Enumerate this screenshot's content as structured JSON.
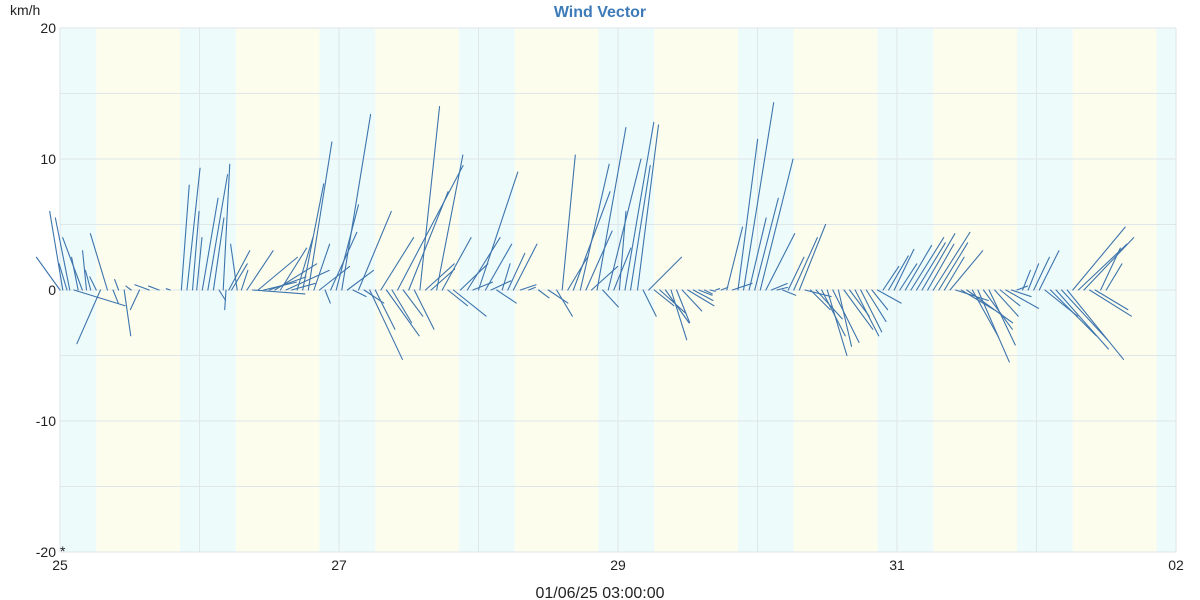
{
  "chart_data": {
    "type": "wind-vector",
    "title": "Wind Vector",
    "y_unit": "km/h",
    "ylim": [
      -20,
      20
    ],
    "y_ticks": [
      20,
      10,
      0,
      -10,
      -20
    ],
    "x_ticks": [
      {
        "label": "25",
        "day": 25
      },
      {
        "label": "27",
        "day": 27
      },
      {
        "label": "29",
        "day": 29
      },
      {
        "label": "31",
        "day": 31
      },
      {
        "label": "02",
        "day": 33
      }
    ],
    "xlim_days": [
      25,
      33
    ],
    "cursor_time": "01/06/25 03:00:00",
    "cursor_marker": "*",
    "grid": true,
    "background_bands": [
      {
        "kind": "night",
        "start": 25.0,
        "end": 25.26
      },
      {
        "kind": "day",
        "start": 25.26,
        "end": 25.86
      },
      {
        "kind": "night",
        "start": 25.86,
        "end": 26.26
      },
      {
        "kind": "day",
        "start": 26.26,
        "end": 26.86
      },
      {
        "kind": "night",
        "start": 26.86,
        "end": 27.26
      },
      {
        "kind": "day",
        "start": 27.26,
        "end": 27.86
      },
      {
        "kind": "night",
        "start": 27.86,
        "end": 28.26
      },
      {
        "kind": "day",
        "start": 28.26,
        "end": 28.86
      },
      {
        "kind": "night",
        "start": 28.86,
        "end": 29.26
      },
      {
        "kind": "day",
        "start": 29.26,
        "end": 29.86
      },
      {
        "kind": "night",
        "start": 29.86,
        "end": 30.26
      },
      {
        "kind": "day",
        "start": 30.26,
        "end": 30.86
      },
      {
        "kind": "night",
        "start": 30.86,
        "end": 31.26
      },
      {
        "kind": "day",
        "start": 31.26,
        "end": 31.86
      },
      {
        "kind": "night",
        "start": 31.86,
        "end": 32.26
      },
      {
        "kind": "day",
        "start": 32.26,
        "end": 32.86
      },
      {
        "kind": "night",
        "start": 32.86,
        "end": 33.0
      }
    ],
    "vectors": [
      {
        "t": 25.0,
        "u": -1.8,
        "v": 2.5
      },
      {
        "t": 25.02,
        "u": -1.0,
        "v": 6.0
      },
      {
        "t": 25.05,
        "u": -0.6,
        "v": 2.0
      },
      {
        "t": 25.07,
        "u": -1.1,
        "v": 5.5
      },
      {
        "t": 25.1,
        "u": 3.9,
        "v": -1.2
      },
      {
        "t": 25.13,
        "u": -0.5,
        "v": 2.5
      },
      {
        "t": 25.16,
        "u": -1.5,
        "v": 4.0
      },
      {
        "t": 25.19,
        "u": -0.3,
        "v": 3.0
      },
      {
        "t": 25.22,
        "u": -0.4,
        "v": 1.5
      },
      {
        "t": 25.26,
        "u": -0.5,
        "v": 1.0
      },
      {
        "t": 25.29,
        "u": -1.8,
        "v": -4.1
      },
      {
        "t": 25.34,
        "u": -1.3,
        "v": 4.3
      },
      {
        "t": 25.38,
        "u": 0.4,
        "v": -1.0
      },
      {
        "t": 25.42,
        "u": -0.3,
        "v": 0.8
      },
      {
        "t": 25.46,
        "u": 0.5,
        "v": -3.5
      },
      {
        "t": 25.51,
        "u": -0.4,
        "v": 0.3
      },
      {
        "t": 25.57,
        "u": -0.7,
        "v": -1.5
      },
      {
        "t": 25.64,
        "u": -1.1,
        "v": 0.4
      },
      {
        "t": 25.71,
        "u": -0.8,
        "v": 0.3
      },
      {
        "t": 25.79,
        "u": -0.3,
        "v": 0.1
      },
      {
        "t": 25.87,
        "u": 0.6,
        "v": 8.0
      },
      {
        "t": 25.91,
        "u": 1.0,
        "v": 9.3
      },
      {
        "t": 25.95,
        "u": 0.5,
        "v": 6.0
      },
      {
        "t": 25.98,
        "u": 0.4,
        "v": 4.0
      },
      {
        "t": 26.02,
        "u": 1.2,
        "v": 7.0
      },
      {
        "t": 26.06,
        "u": 1.5,
        "v": 8.8
      },
      {
        "t": 26.1,
        "u": 0.8,
        "v": 5.5
      },
      {
        "t": 26.14,
        "u": 0.5,
        "v": -0.8
      },
      {
        "t": 26.17,
        "u": 0.5,
        "v": 9.6
      },
      {
        "t": 26.19,
        "u": -0.1,
        "v": -1.5
      },
      {
        "t": 26.21,
        "u": 1.6,
        "v": 3.0
      },
      {
        "t": 26.23,
        "u": 1.2,
        "v": 2.0
      },
      {
        "t": 26.27,
        "u": -0.5,
        "v": 3.5
      },
      {
        "t": 26.3,
        "u": 0.5,
        "v": 1.5
      },
      {
        "t": 26.34,
        "u": 2.0,
        "v": 3.0
      },
      {
        "t": 26.38,
        "u": 4.0,
        "v": -0.3
      },
      {
        "t": 26.42,
        "u": 3.0,
        "v": 2.5
      },
      {
        "t": 26.46,
        "u": 2.5,
        "v": 0.6
      },
      {
        "t": 26.5,
        "u": 2.8,
        "v": 1.0
      },
      {
        "t": 26.54,
        "u": 3.2,
        "v": 2.0
      },
      {
        "t": 26.58,
        "u": 2.0,
        "v": 3.2
      },
      {
        "t": 26.62,
        "u": 3.3,
        "v": 1.5
      },
      {
        "t": 26.66,
        "u": 1.8,
        "v": 0.5
      },
      {
        "t": 26.7,
        "u": 1.2,
        "v": 4.0
      },
      {
        "t": 26.74,
        "u": 1.6,
        "v": 8.1
      },
      {
        "t": 26.78,
        "u": 1.8,
        "v": 11.3
      },
      {
        "t": 26.82,
        "u": 1.2,
        "v": 3.5
      },
      {
        "t": 26.86,
        "u": 2.3,
        "v": 1.8
      },
      {
        "t": 26.9,
        "u": 0.4,
        "v": -1.0
      },
      {
        "t": 26.94,
        "u": 2.0,
        "v": 4.4
      },
      {
        "t": 26.98,
        "u": 1.7,
        "v": 6.5
      },
      {
        "t": 27.02,
        "u": 2.2,
        "v": 13.4
      },
      {
        "t": 27.06,
        "u": 2.0,
        "v": 1.5
      },
      {
        "t": 27.1,
        "u": 1.0,
        "v": -0.5
      },
      {
        "t": 27.14,
        "u": 2.5,
        "v": 6.0
      },
      {
        "t": 27.18,
        "u": 1.5,
        "v": -1.0
      },
      {
        "t": 27.22,
        "u": 2.5,
        "v": -5.3
      },
      {
        "t": 27.26,
        "u": 1.5,
        "v": -3.0
      },
      {
        "t": 27.3,
        "u": 2.5,
        "v": 4.0
      },
      {
        "t": 27.34,
        "u": 2.5,
        "v": -3.5
      },
      {
        "t": 27.38,
        "u": 1.5,
        "v": -2.5
      },
      {
        "t": 27.42,
        "u": 5.0,
        "v": 9.5
      },
      {
        "t": 27.46,
        "u": 1.5,
        "v": -2.0
      },
      {
        "t": 27.5,
        "u": 3.0,
        "v": 7.5
      },
      {
        "t": 27.54,
        "u": 1.5,
        "v": -3.0
      },
      {
        "t": 27.58,
        "u": 1.5,
        "v": 14.0
      },
      {
        "t": 27.62,
        "u": 2.2,
        "v": 2.0
      },
      {
        "t": 27.66,
        "u": 1.8,
        "v": 1.6
      },
      {
        "t": 27.7,
        "u": 2.0,
        "v": 10.3
      },
      {
        "t": 27.74,
        "u": 2.2,
        "v": 4.0
      },
      {
        "t": 27.78,
        "u": 1.5,
        "v": -1.2
      },
      {
        "t": 27.82,
        "u": 2.5,
        "v": -2.0
      },
      {
        "t": 27.87,
        "u": 2.1,
        "v": 2.0
      },
      {
        "t": 27.92,
        "u": 2.5,
        "v": 4.0
      },
      {
        "t": 27.96,
        "u": 1.5,
        "v": 0.6
      },
      {
        "t": 28.0,
        "u": 3.0,
        "v": 9.0
      },
      {
        "t": 28.05,
        "u": 2.0,
        "v": 3.5
      },
      {
        "t": 28.09,
        "u": 1.5,
        "v": 0.7
      },
      {
        "t": 28.13,
        "u": 1.5,
        "v": -1.0
      },
      {
        "t": 28.17,
        "u": 0.6,
        "v": 2.0
      },
      {
        "t": 28.21,
        "u": 1.3,
        "v": 2.8
      },
      {
        "t": 28.25,
        "u": 1.8,
        "v": 3.5
      },
      {
        "t": 28.3,
        "u": 1.2,
        "v": 0.4
      },
      {
        "t": 28.36,
        "u": 0.5,
        "v": 0.2
      },
      {
        "t": 28.43,
        "u": 0.8,
        "v": -0.6
      },
      {
        "t": 28.5,
        "u": 1.5,
        "v": -1.0
      },
      {
        "t": 28.56,
        "u": 1.2,
        "v": -2.0
      },
      {
        "t": 28.6,
        "u": 1.0,
        "v": 10.3
      },
      {
        "t": 28.64,
        "u": 1.5,
        "v": 2.5
      },
      {
        "t": 28.68,
        "u": 2.8,
        "v": 7.5
      },
      {
        "t": 28.73,
        "u": 2.2,
        "v": 9.6
      },
      {
        "t": 28.77,
        "u": 2.0,
        "v": 4.5
      },
      {
        "t": 28.81,
        "u": 2.0,
        "v": 1.8
      },
      {
        "t": 28.85,
        "u": 2.2,
        "v": 12.4
      },
      {
        "t": 28.89,
        "u": 1.2,
        "v": -1.3
      },
      {
        "t": 28.93,
        "u": 2.5,
        "v": 10.0
      },
      {
        "t": 28.97,
        "u": 1.3,
        "v": 3.2
      },
      {
        "t": 29.01,
        "u": 0.5,
        "v": 6.0
      },
      {
        "t": 29.05,
        "u": 2.2,
        "v": 12.8
      },
      {
        "t": 29.09,
        "u": 1.5,
        "v": 9.5
      },
      {
        "t": 29.14,
        "u": 1.6,
        "v": 12.6
      },
      {
        "t": 29.18,
        "u": 1.0,
        "v": -2.0
      },
      {
        "t": 29.22,
        "u": 2.5,
        "v": 2.5
      },
      {
        "t": 29.26,
        "u": 1.5,
        "v": -1.2
      },
      {
        "t": 29.3,
        "u": 2.0,
        "v": -1.8
      },
      {
        "t": 29.34,
        "u": 1.8,
        "v": -2.5
      },
      {
        "t": 29.38,
        "u": 1.2,
        "v": -3.8
      },
      {
        "t": 29.42,
        "u": 1.0,
        "v": -2.5
      },
      {
        "t": 29.46,
        "u": 1.5,
        "v": -1.6
      },
      {
        "t": 29.5,
        "u": 2.0,
        "v": -1.2
      },
      {
        "t": 29.54,
        "u": 1.5,
        "v": -0.8
      },
      {
        "t": 29.58,
        "u": 1.0,
        "v": -0.4
      },
      {
        "t": 29.62,
        "u": 0.6,
        "v": -0.3
      },
      {
        "t": 29.66,
        "u": 0.4,
        "v": -0.1
      },
      {
        "t": 29.7,
        "u": 0.3,
        "v": 0.1
      },
      {
        "t": 29.74,
        "u": 0.5,
        "v": 0.2
      },
      {
        "t": 29.78,
        "u": 1.2,
        "v": 4.8
      },
      {
        "t": 29.82,
        "u": 1.5,
        "v": 0.5
      },
      {
        "t": 29.86,
        "u": 1.5,
        "v": 11.5
      },
      {
        "t": 29.9,
        "u": 2.3,
        "v": 14.3
      },
      {
        "t": 29.94,
        "u": 1.3,
        "v": 5.5
      },
      {
        "t": 29.98,
        "u": 1.8,
        "v": 7.0
      },
      {
        "t": 30.02,
        "u": 2.5,
        "v": 10.0
      },
      {
        "t": 30.06,
        "u": 2.2,
        "v": 4.3
      },
      {
        "t": 30.1,
        "u": 1.2,
        "v": 0.5
      },
      {
        "t": 30.14,
        "u": 0.8,
        "v": 0.2
      },
      {
        "t": 30.18,
        "u": 1.0,
        "v": -0.4
      },
      {
        "t": 30.22,
        "u": 1.2,
        "v": 2.5
      },
      {
        "t": 30.26,
        "u": 1.8,
        "v": 4.0
      },
      {
        "t": 30.3,
        "u": 2.0,
        "v": 5.0
      },
      {
        "t": 30.34,
        "u": 2.0,
        "v": -0.5
      },
      {
        "t": 30.38,
        "u": 1.5,
        "v": -1.5
      },
      {
        "t": 30.42,
        "u": 2.0,
        "v": -2.2
      },
      {
        "t": 30.46,
        "u": 1.8,
        "v": -3.5
      },
      {
        "t": 30.5,
        "u": 1.5,
        "v": -5.0
      },
      {
        "t": 30.54,
        "u": 2.0,
        "v": -4.0
      },
      {
        "t": 30.58,
        "u": 1.0,
        "v": -4.3
      },
      {
        "t": 30.62,
        "u": 2.2,
        "v": -3.0
      },
      {
        "t": 30.66,
        "u": 1.5,
        "v": -2.0
      },
      {
        "t": 30.7,
        "u": 1.8,
        "v": -3.5
      },
      {
        "t": 30.74,
        "u": 1.6,
        "v": -3.2
      },
      {
        "t": 30.78,
        "u": 1.5,
        "v": -2.4
      },
      {
        "t": 30.82,
        "u": 1.2,
        "v": -1.5
      },
      {
        "t": 30.86,
        "u": 1.8,
        "v": -1.0
      },
      {
        "t": 30.9,
        "u": 1.2,
        "v": 1.8
      },
      {
        "t": 30.94,
        "u": 1.5,
        "v": 2.6
      },
      {
        "t": 30.98,
        "u": 1.5,
        "v": 3.1
      },
      {
        "t": 31.02,
        "u": 1.3,
        "v": 2.0
      },
      {
        "t": 31.06,
        "u": 2.0,
        "v": 3.4
      },
      {
        "t": 31.1,
        "u": 2.5,
        "v": 4.0
      },
      {
        "t": 31.14,
        "u": 2.2,
        "v": 3.6
      },
      {
        "t": 31.18,
        "u": 2.5,
        "v": 4.3
      },
      {
        "t": 31.22,
        "u": 2.0,
        "v": 3.5
      },
      {
        "t": 31.26,
        "u": 2.8,
        "v": 4.4
      },
      {
        "t": 31.3,
        "u": 2.2,
        "v": 3.6
      },
      {
        "t": 31.34,
        "u": 1.5,
        "v": 2.5
      },
      {
        "t": 31.38,
        "u": 2.5,
        "v": 3.0
      },
      {
        "t": 31.42,
        "u": 2.5,
        "v": -0.8
      },
      {
        "t": 31.46,
        "u": 2.5,
        "v": -1.5
      },
      {
        "t": 31.5,
        "u": 3.5,
        "v": -2.5
      },
      {
        "t": 31.54,
        "u": 2.0,
        "v": -3.6
      },
      {
        "t": 31.58,
        "u": 2.4,
        "v": -5.5
      },
      {
        "t": 31.62,
        "u": 2.2,
        "v": -3.0
      },
      {
        "t": 31.66,
        "u": 2.0,
        "v": -4.2
      },
      {
        "t": 31.7,
        "u": 1.8,
        "v": -2.0
      },
      {
        "t": 31.74,
        "u": 1.5,
        "v": -1.2
      },
      {
        "t": 31.78,
        "u": 2.5,
        "v": -1.4
      },
      {
        "t": 31.82,
        "u": 1.5,
        "v": -0.5
      },
      {
        "t": 31.86,
        "u": 0.8,
        "v": 0.3
      },
      {
        "t": 31.9,
        "u": 0.6,
        "v": 1.5
      },
      {
        "t": 31.94,
        "u": 0.8,
        "v": 2.0
      },
      {
        "t": 31.98,
        "u": 1.2,
        "v": 2.5
      },
      {
        "t": 32.02,
        "u": 1.5,
        "v": 3.0
      },
      {
        "t": 32.06,
        "u": 2.5,
        "v": -2.0
      },
      {
        "t": 32.1,
        "u": 3.5,
        "v": -3.5
      },
      {
        "t": 32.14,
        "u": 4.0,
        "v": -4.5
      },
      {
        "t": 32.18,
        "u": 3.5,
        "v": -3.8
      },
      {
        "t": 32.22,
        "u": 4.3,
        "v": -5.3
      },
      {
        "t": 32.26,
        "u": 4.0,
        "v": 4.8
      },
      {
        "t": 32.3,
        "u": 3.7,
        "v": 3.5
      },
      {
        "t": 32.34,
        "u": 3.8,
        "v": 4.0
      },
      {
        "t": 32.38,
        "u": 3.2,
        "v": -2.0
      },
      {
        "t": 32.42,
        "u": 2.5,
        "v": -1.5
      },
      {
        "t": 32.46,
        "u": 1.5,
        "v": 3.2
      },
      {
        "t": 32.5,
        "u": 1.2,
        "v": 2.0
      }
    ]
  }
}
